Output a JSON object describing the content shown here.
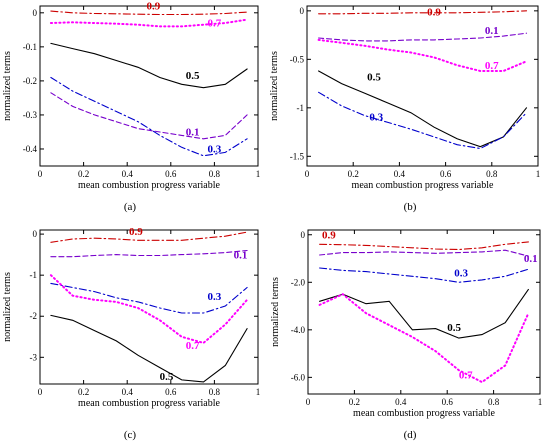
{
  "chart_data": [
    {
      "type": "line",
      "caption": "(a)",
      "xlabel": "mean combustion progress variable",
      "ylabel": "normalized terms",
      "xlim": [
        0,
        1
      ],
      "ylim": [
        -0.45,
        0.02
      ],
      "xticks": [
        0,
        0.2,
        0.4,
        0.6,
        0.8,
        1
      ],
      "xtick_labels": [
        "0",
        "0.2",
        "0.4",
        "0.6",
        "0.8",
        "1"
      ],
      "yticks": [
        0,
        -0.1,
        -0.2,
        -0.3,
        -0.4
      ],
      "ytick_labels": [
        "0",
        "-0.1",
        "-0.2",
        "-0.3",
        "-0.4"
      ],
      "series": [
        {
          "name": "0.9",
          "color": "#cc0000",
          "dash": "dashdot",
          "label_at": [
            0.52,
            0.01
          ],
          "x": [
            0.05,
            0.15,
            0.25,
            0.35,
            0.45,
            0.55,
            0.65,
            0.75,
            0.85,
            0.95
          ],
          "y": [
            0.005,
            0.0,
            -0.002,
            -0.003,
            -0.004,
            -0.005,
            -0.005,
            -0.004,
            -0.002,
            0.002
          ]
        },
        {
          "name": "0.7",
          "color": "#ff00ff",
          "dash": "dot",
          "label_at": [
            0.8,
            -0.04
          ],
          "x": [
            0.05,
            0.15,
            0.25,
            0.35,
            0.45,
            0.55,
            0.65,
            0.75,
            0.85,
            0.95
          ],
          "y": [
            -0.03,
            -0.028,
            -0.03,
            -0.032,
            -0.035,
            -0.04,
            -0.04,
            -0.035,
            -0.03,
            -0.02
          ]
        },
        {
          "name": "0.5",
          "color": "#000000",
          "dash": "solid",
          "label_at": [
            0.7,
            -0.195
          ],
          "x": [
            0.05,
            0.15,
            0.25,
            0.35,
            0.45,
            0.55,
            0.65,
            0.75,
            0.85,
            0.95
          ],
          "y": [
            -0.09,
            -0.105,
            -0.12,
            -0.14,
            -0.16,
            -0.19,
            -0.21,
            -0.22,
            -0.21,
            -0.165
          ]
        },
        {
          "name": "0.1",
          "color": "#7700cc",
          "dash": "dashed",
          "label_at": [
            0.7,
            -0.36
          ],
          "x": [
            0.05,
            0.15,
            0.25,
            0.35,
            0.45,
            0.55,
            0.65,
            0.75,
            0.85,
            0.95
          ],
          "y": [
            -0.235,
            -0.275,
            -0.3,
            -0.32,
            -0.34,
            -0.35,
            -0.36,
            -0.37,
            -0.36,
            -0.3
          ]
        },
        {
          "name": "0.3",
          "color": "#0000cc",
          "dash": "dashdot",
          "label_at": [
            0.8,
            -0.41
          ],
          "x": [
            0.05,
            0.15,
            0.25,
            0.35,
            0.45,
            0.55,
            0.65,
            0.75,
            0.85,
            0.95
          ],
          "y": [
            -0.19,
            -0.23,
            -0.26,
            -0.29,
            -0.32,
            -0.36,
            -0.395,
            -0.42,
            -0.41,
            -0.37
          ]
        }
      ]
    },
    {
      "type": "line",
      "caption": "(b)",
      "xlabel": "mean combustion progress variable",
      "ylabel": "normalized terms",
      "xlim": [
        0,
        1
      ],
      "ylim": [
        -1.6,
        0.05
      ],
      "xticks": [
        0,
        0.2,
        0.4,
        0.6,
        0.8,
        1
      ],
      "xtick_labels": [
        "0",
        "0.2",
        "0.4",
        "0.6",
        "0.8",
        "1"
      ],
      "yticks": [
        0,
        -0.5,
        -1,
        -1.5
      ],
      "ytick_labels": [
        "0",
        "-0.5",
        "-1",
        "-1.5"
      ],
      "series": [
        {
          "name": "0.9",
          "color": "#cc0000",
          "dash": "dashdot",
          "label_at": [
            0.55,
            -0.05
          ],
          "x": [
            0.05,
            0.15,
            0.25,
            0.35,
            0.45,
            0.55,
            0.65,
            0.75,
            0.85,
            0.95
          ],
          "y": [
            -0.03,
            -0.03,
            -0.025,
            -0.025,
            -0.02,
            -0.02,
            -0.02,
            -0.015,
            -0.01,
            0.0
          ]
        },
        {
          "name": "0.1",
          "color": "#7700cc",
          "dash": "dashed",
          "label_at": [
            0.8,
            -0.24
          ],
          "x": [
            0.05,
            0.15,
            0.25,
            0.35,
            0.45,
            0.55,
            0.65,
            0.75,
            0.85,
            0.95
          ],
          "y": [
            -0.28,
            -0.3,
            -0.31,
            -0.31,
            -0.3,
            -0.3,
            -0.29,
            -0.28,
            -0.26,
            -0.23
          ]
        },
        {
          "name": "0.7",
          "color": "#ff00ff",
          "dash": "dot",
          "label_at": [
            0.8,
            -0.6
          ],
          "x": [
            0.05,
            0.15,
            0.25,
            0.35,
            0.45,
            0.55,
            0.65,
            0.75,
            0.85,
            0.95
          ],
          "y": [
            -0.3,
            -0.33,
            -0.36,
            -0.4,
            -0.43,
            -0.48,
            -0.56,
            -0.62,
            -0.62,
            -0.52
          ]
        },
        {
          "name": "0.5",
          "color": "#000000",
          "dash": "solid",
          "label_at": [
            0.29,
            -0.72
          ],
          "x": [
            0.05,
            0.15,
            0.25,
            0.35,
            0.45,
            0.55,
            0.65,
            0.75,
            0.85,
            0.95
          ],
          "y": [
            -0.62,
            -0.75,
            -0.85,
            -0.95,
            -1.05,
            -1.2,
            -1.32,
            -1.4,
            -1.3,
            -1.0
          ]
        },
        {
          "name": "0.3",
          "color": "#0000cc",
          "dash": "dashdot",
          "label_at": [
            0.3,
            -1.13
          ],
          "x": [
            0.05,
            0.15,
            0.25,
            0.35,
            0.45,
            0.55,
            0.65,
            0.75,
            0.85,
            0.95
          ],
          "y": [
            -0.84,
            -0.98,
            -1.08,
            -1.15,
            -1.22,
            -1.3,
            -1.38,
            -1.42,
            -1.3,
            -1.05
          ]
        }
      ]
    },
    {
      "type": "line",
      "caption": "(c)",
      "xlabel": "mean combustion progress variable",
      "ylabel": "normalized terms",
      "xlim": [
        0,
        1
      ],
      "ylim": [
        -3.65,
        0.1
      ],
      "xticks": [
        0,
        0.2,
        0.4,
        0.6,
        0.8,
        1
      ],
      "xtick_labels": [
        "0",
        "0.2",
        "0.4",
        "0.6",
        "0.8",
        "1"
      ],
      "yticks": [
        0,
        -1,
        -2,
        -3
      ],
      "ytick_labels": [
        "0",
        "-1",
        "-2",
        "-3"
      ],
      "series": [
        {
          "name": "0.9",
          "color": "#cc0000",
          "dash": "dashdot",
          "label_at": [
            0.44,
            -0.02
          ],
          "x": [
            0.05,
            0.15,
            0.25,
            0.35,
            0.45,
            0.55,
            0.65,
            0.75,
            0.85,
            0.95
          ],
          "y": [
            -0.2,
            -0.12,
            -0.1,
            -0.12,
            -0.15,
            -0.15,
            -0.15,
            -0.1,
            -0.05,
            0.05
          ]
        },
        {
          "name": "0.1",
          "color": "#7700cc",
          "dash": "dashed",
          "label_at": [
            0.92,
            -0.6
          ],
          "x": [
            0.05,
            0.15,
            0.25,
            0.35,
            0.45,
            0.55,
            0.65,
            0.75,
            0.85,
            0.95
          ],
          "y": [
            -0.55,
            -0.55,
            -0.52,
            -0.5,
            -0.52,
            -0.52,
            -0.5,
            -0.48,
            -0.45,
            -0.4
          ]
        },
        {
          "name": "0.3",
          "color": "#0000cc",
          "dash": "dashdot",
          "label_at": [
            0.8,
            -1.6
          ],
          "x": [
            0.05,
            0.15,
            0.25,
            0.35,
            0.45,
            0.55,
            0.65,
            0.75,
            0.85,
            0.95
          ],
          "y": [
            -1.2,
            -1.3,
            -1.4,
            -1.55,
            -1.65,
            -1.8,
            -1.92,
            -1.92,
            -1.75,
            -1.3
          ]
        },
        {
          "name": "0.7",
          "color": "#ff00ff",
          "dash": "dot",
          "label_at": [
            0.7,
            -2.8
          ],
          "x": [
            0.05,
            0.15,
            0.25,
            0.35,
            0.45,
            0.55,
            0.65,
            0.75,
            0.85,
            0.95
          ],
          "y": [
            -1.0,
            -1.5,
            -1.6,
            -1.65,
            -1.8,
            -2.1,
            -2.5,
            -2.65,
            -2.2,
            -1.6
          ]
        },
        {
          "name": "0.5",
          "color": "#000000",
          "dash": "solid",
          "label_at": [
            0.58,
            -3.55
          ],
          "x": [
            0.05,
            0.15,
            0.25,
            0.35,
            0.45,
            0.55,
            0.65,
            0.75,
            0.85,
            0.95
          ],
          "y": [
            -1.98,
            -2.1,
            -2.35,
            -2.6,
            -2.95,
            -3.25,
            -3.55,
            -3.6,
            -3.2,
            -2.3
          ]
        }
      ]
    },
    {
      "type": "line",
      "caption": "(d)",
      "xlabel": "mean combustion progress variable",
      "ylabel": "normalized terms",
      "xlim": [
        0,
        1
      ],
      "ylim": [
        -6.7,
        0.2
      ],
      "xticks": [
        0,
        0.2,
        0.4,
        0.6,
        0.8,
        1
      ],
      "xtick_labels": [
        "0",
        "0.2",
        "0.4",
        "0.6",
        "0.8",
        "1"
      ],
      "yticks": [
        0,
        -2,
        -4,
        -6
      ],
      "ytick_labels": [
        "0",
        "-2.0",
        "-4.0",
        "-6.0"
      ],
      "series": [
        {
          "name": "0.9",
          "color": "#cc0000",
          "dash": "dashdot",
          "label_at": [
            0.09,
            -0.15
          ],
          "x": [
            0.05,
            0.15,
            0.25,
            0.35,
            0.45,
            0.55,
            0.65,
            0.75,
            0.85,
            0.95
          ],
          "y": [
            -0.4,
            -0.42,
            -0.45,
            -0.5,
            -0.55,
            -0.6,
            -0.62,
            -0.55,
            -0.4,
            -0.3
          ]
        },
        {
          "name": "0.1",
          "color": "#7700cc",
          "dash": "dashed",
          "label_at": [
            0.96,
            -1.15
          ],
          "x": [
            0.05,
            0.15,
            0.25,
            0.35,
            0.45,
            0.55,
            0.65,
            0.75,
            0.85,
            0.95
          ],
          "y": [
            -0.85,
            -0.75,
            -0.75,
            -0.72,
            -0.75,
            -0.78,
            -0.75,
            -0.72,
            -0.65,
            -0.9
          ]
        },
        {
          "name": "0.3",
          "color": "#0000cc",
          "dash": "dashdot",
          "label_at": [
            0.66,
            -1.75
          ],
          "x": [
            0.05,
            0.15,
            0.25,
            0.35,
            0.45,
            0.55,
            0.65,
            0.75,
            0.85,
            0.95
          ],
          "y": [
            -1.4,
            -1.5,
            -1.55,
            -1.65,
            -1.75,
            -1.85,
            -2.0,
            -1.9,
            -1.75,
            -1.45
          ]
        },
        {
          "name": "0.5",
          "color": "#000000",
          "dash": "solid",
          "label_at": [
            0.63,
            -4.05
          ],
          "x": [
            0.05,
            0.15,
            0.25,
            0.35,
            0.45,
            0.55,
            0.65,
            0.75,
            0.85,
            0.95
          ],
          "y": [
            -2.8,
            -2.5,
            -2.9,
            -2.8,
            -4.0,
            -3.95,
            -4.35,
            -4.2,
            -3.7,
            -2.3
          ]
        },
        {
          "name": "0.7",
          "color": "#ff00ff",
          "dash": "dot",
          "label_at": [
            0.68,
            -6.05
          ],
          "x": [
            0.05,
            0.15,
            0.25,
            0.35,
            0.45,
            0.55,
            0.65,
            0.75,
            0.85,
            0.95
          ],
          "y": [
            -2.95,
            -2.5,
            -3.3,
            -3.8,
            -4.3,
            -4.9,
            -5.7,
            -6.2,
            -5.5,
            -3.3
          ]
        }
      ]
    }
  ]
}
